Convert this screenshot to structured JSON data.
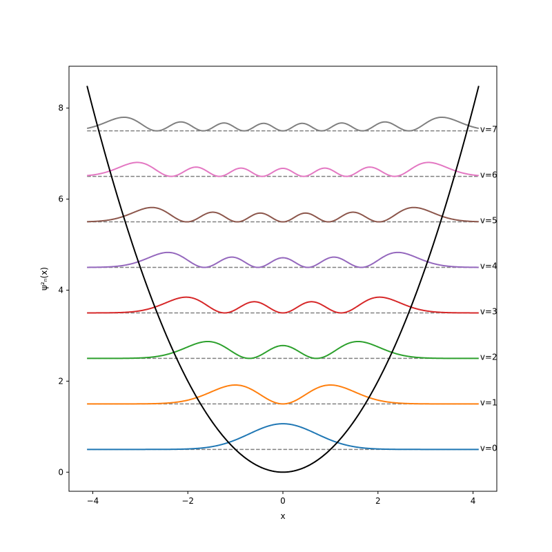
{
  "chart_data": {
    "type": "line",
    "title": "",
    "xlabel": "x",
    "ylabel": "ψ²ₙ(x)",
    "xlim": [
      -4.5,
      4.5
    ],
    "ylim": [
      -0.42,
      8.92
    ],
    "x_ticks": [
      -4,
      -2,
      0,
      2,
      4
    ],
    "y_ticks": [
      0,
      2,
      4,
      6,
      8
    ],
    "x_tick_labels": [
      "−4",
      "−2",
      "0",
      "2",
      "4"
    ],
    "y_tick_labels": [
      "0",
      "2",
      "4",
      "6",
      "8"
    ],
    "x_range": [
      -4.12,
      4.12
    ],
    "grid": false,
    "legend": "none",
    "potential": {
      "formula": "V(x) = x^2 / 2",
      "color": "#000000"
    },
    "levels": [
      {
        "n": 0,
        "energy": 0.5,
        "label": "v=0",
        "color": "#1f77b4"
      },
      {
        "n": 1,
        "energy": 1.5,
        "label": "v=1",
        "color": "#ff7f0e"
      },
      {
        "n": 2,
        "energy": 2.5,
        "label": "v=2",
        "color": "#2ca02c"
      },
      {
        "n": 3,
        "energy": 3.5,
        "label": "v=3",
        "color": "#d62728"
      },
      {
        "n": 4,
        "energy": 4.5,
        "label": "v=4",
        "color": "#9467bd"
      },
      {
        "n": 5,
        "energy": 5.5,
        "label": "v=5",
        "color": "#8c564b"
      },
      {
        "n": 6,
        "energy": 6.5,
        "label": "v=6",
        "color": "#e377c2"
      },
      {
        "n": 7,
        "energy": 7.5,
        "label": "v=7",
        "color": "#7f7f7f"
      }
    ],
    "level_line_color": "#808080",
    "density_scale": 1.0
  }
}
